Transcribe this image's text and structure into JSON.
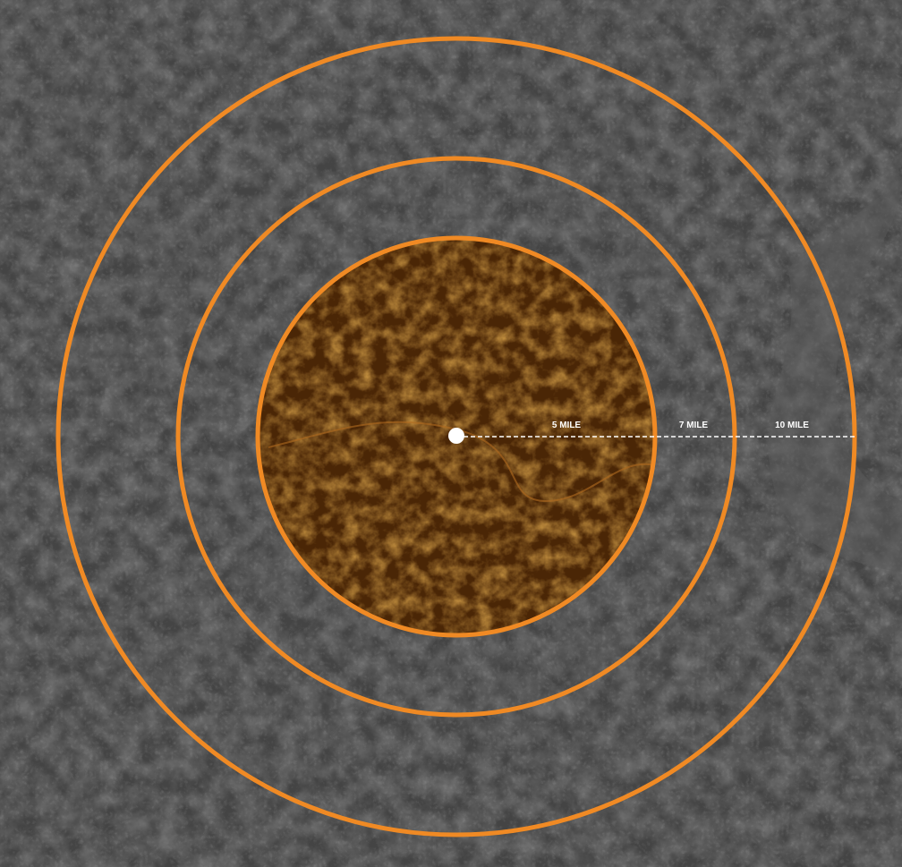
{
  "rings": [
    {
      "label": "5 MILE"
    },
    {
      "label": "7 MILE"
    },
    {
      "label": "10 MILE"
    }
  ]
}
